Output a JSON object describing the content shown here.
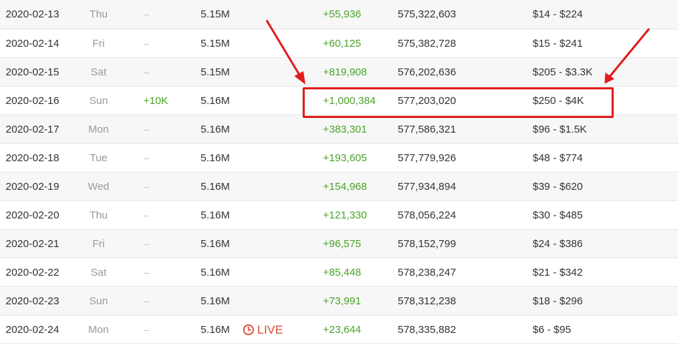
{
  "table": {
    "rows": [
      {
        "date": "2020-02-13",
        "day": "Thu",
        "subs_change": "–",
        "subs_total": "5.15M",
        "live": "",
        "views_change": "+55,936",
        "views_total": "575,322,603",
        "earnings": "$14  -  $224"
      },
      {
        "date": "2020-02-14",
        "day": "Fri",
        "subs_change": "–",
        "subs_total": "5.15M",
        "live": "",
        "views_change": "+60,125",
        "views_total": "575,382,728",
        "earnings": "$15  -  $241"
      },
      {
        "date": "2020-02-15",
        "day": "Sat",
        "subs_change": "–",
        "subs_total": "5.15M",
        "live": "",
        "views_change": "+819,908",
        "views_total": "576,202,636",
        "earnings": "$205  -  $3.3K"
      },
      {
        "date": "2020-02-16",
        "day": "Sun",
        "subs_change": "+10K",
        "subs_total": "5.16M",
        "live": "",
        "views_change": "+1,000,384",
        "views_total": "577,203,020",
        "earnings": "$250  -  $4K"
      },
      {
        "date": "2020-02-17",
        "day": "Mon",
        "subs_change": "–",
        "subs_total": "5.16M",
        "live": "",
        "views_change": "+383,301",
        "views_total": "577,586,321",
        "earnings": "$96  -  $1.5K"
      },
      {
        "date": "2020-02-18",
        "day": "Tue",
        "subs_change": "–",
        "subs_total": "5.16M",
        "live": "",
        "views_change": "+193,605",
        "views_total": "577,779,926",
        "earnings": "$48  -  $774"
      },
      {
        "date": "2020-02-19",
        "day": "Wed",
        "subs_change": "–",
        "subs_total": "5.16M",
        "live": "",
        "views_change": "+154,968",
        "views_total": "577,934,894",
        "earnings": "$39  -  $620"
      },
      {
        "date": "2020-02-20",
        "day": "Thu",
        "subs_change": "–",
        "subs_total": "5.16M",
        "live": "",
        "views_change": "+121,330",
        "views_total": "578,056,224",
        "earnings": "$30  -  $485"
      },
      {
        "date": "2020-02-21",
        "day": "Fri",
        "subs_change": "–",
        "subs_total": "5.16M",
        "live": "",
        "views_change": "+96,575",
        "views_total": "578,152,799",
        "earnings": "$24  -  $386"
      },
      {
        "date": "2020-02-22",
        "day": "Sat",
        "subs_change": "–",
        "subs_total": "5.16M",
        "live": "",
        "views_change": "+85,448",
        "views_total": "578,238,247",
        "earnings": "$21  -  $342"
      },
      {
        "date": "2020-02-23",
        "day": "Sun",
        "subs_change": "–",
        "subs_total": "5.16M",
        "live": "",
        "views_change": "+73,991",
        "views_total": "578,312,238",
        "earnings": "$18  -  $296"
      },
      {
        "date": "2020-02-24",
        "day": "Mon",
        "subs_change": "–",
        "subs_total": "5.16M",
        "live": "LIVE",
        "views_change": "+23,644",
        "views_total": "578,335,882",
        "earnings": "$6  -  $95"
      }
    ]
  },
  "icons": {
    "live": "clock-icon"
  },
  "colors": {
    "positive": "#4aa329",
    "live": "#d84a38",
    "annotation": "#e01b1b",
    "row_stripe": "#f7f7f7",
    "muted_text": "#999999"
  }
}
